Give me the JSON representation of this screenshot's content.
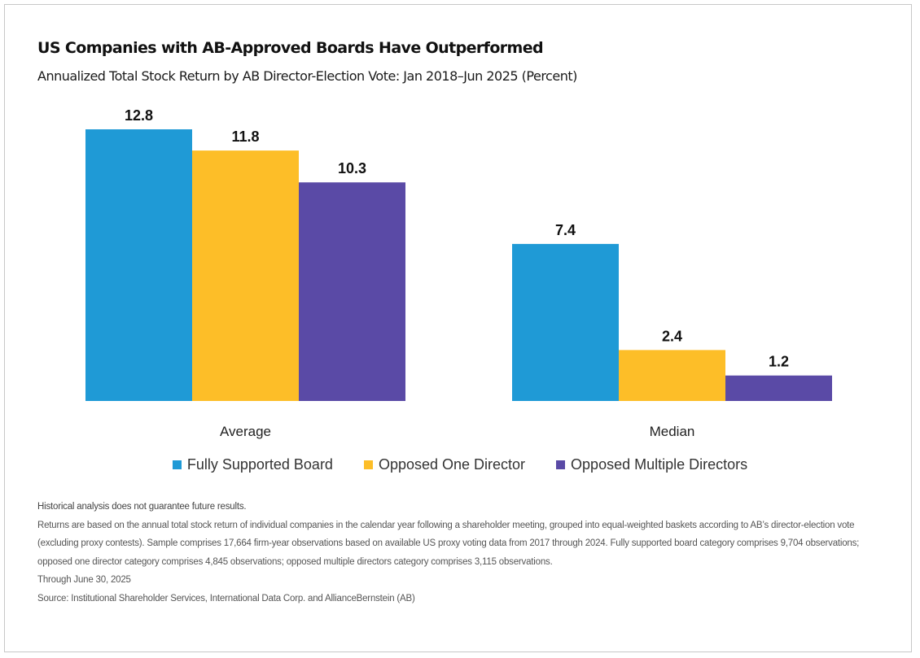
{
  "header": {
    "title": "US Companies with AB-Approved Boards Have Outperformed",
    "subtitle": "Annualized Total Stock Return by AB Director-Election Vote: Jan 2018–Jun 2025 (Percent)"
  },
  "chart_data": {
    "type": "bar",
    "title": "US Companies with AB-Approved Boards Have Outperformed",
    "subtitle": "Annualized Total Stock Return by AB Director-Election Vote: Jan 2018–Jun 2025 (Percent)",
    "xlabel": "",
    "ylabel": "",
    "ylim": [
      0,
      12.8
    ],
    "grid": false,
    "legend_position": "bottom-center",
    "categories": [
      "Average",
      "Median"
    ],
    "series": [
      {
        "name": "Fully Supported Board",
        "color": "#1f9ad6",
        "values": [
          12.8,
          7.4
        ],
        "labels": [
          "12.8",
          "7.4"
        ]
      },
      {
        "name": "Opposed One Director",
        "color": "#fdbe28",
        "values": [
          11.8,
          2.4
        ],
        "labels": [
          "11.8",
          "2.4"
        ]
      },
      {
        "name": "Opposed Multiple Directors",
        "color": "#5a4aa6",
        "values": [
          10.3,
          1.2
        ],
        "labels": [
          "10.3",
          "1.2"
        ]
      }
    ]
  },
  "legend": {
    "items": [
      {
        "label": "Fully Supported Board",
        "color": "#1f9ad6"
      },
      {
        "label": "Opposed One Director",
        "color": "#fdbe28"
      },
      {
        "label": "Opposed Multiple Directors",
        "color": "#5a4aa6"
      }
    ]
  },
  "notes": {
    "disclaimer": "Historical analysis does not guarantee future results.",
    "methodology": "Returns are based on the annual total stock return of individual companies in the calendar year following a shareholder meeting, grouped into equal-weighted baskets according to AB’s director-election vote (excluding proxy contests). Sample comprises 17,664 firm-year observations based on available US proxy voting data from 2017 through 2024. Fully supported board category comprises 9,704 observations; opposed one director category comprises 4,845 observations; opposed multiple directors category comprises 3,115 observations.",
    "through": "Through June 30, 2025",
    "source": "Source: Institutional Shareholder Services, International Data Corp. and AllianceBernstein (AB)"
  }
}
